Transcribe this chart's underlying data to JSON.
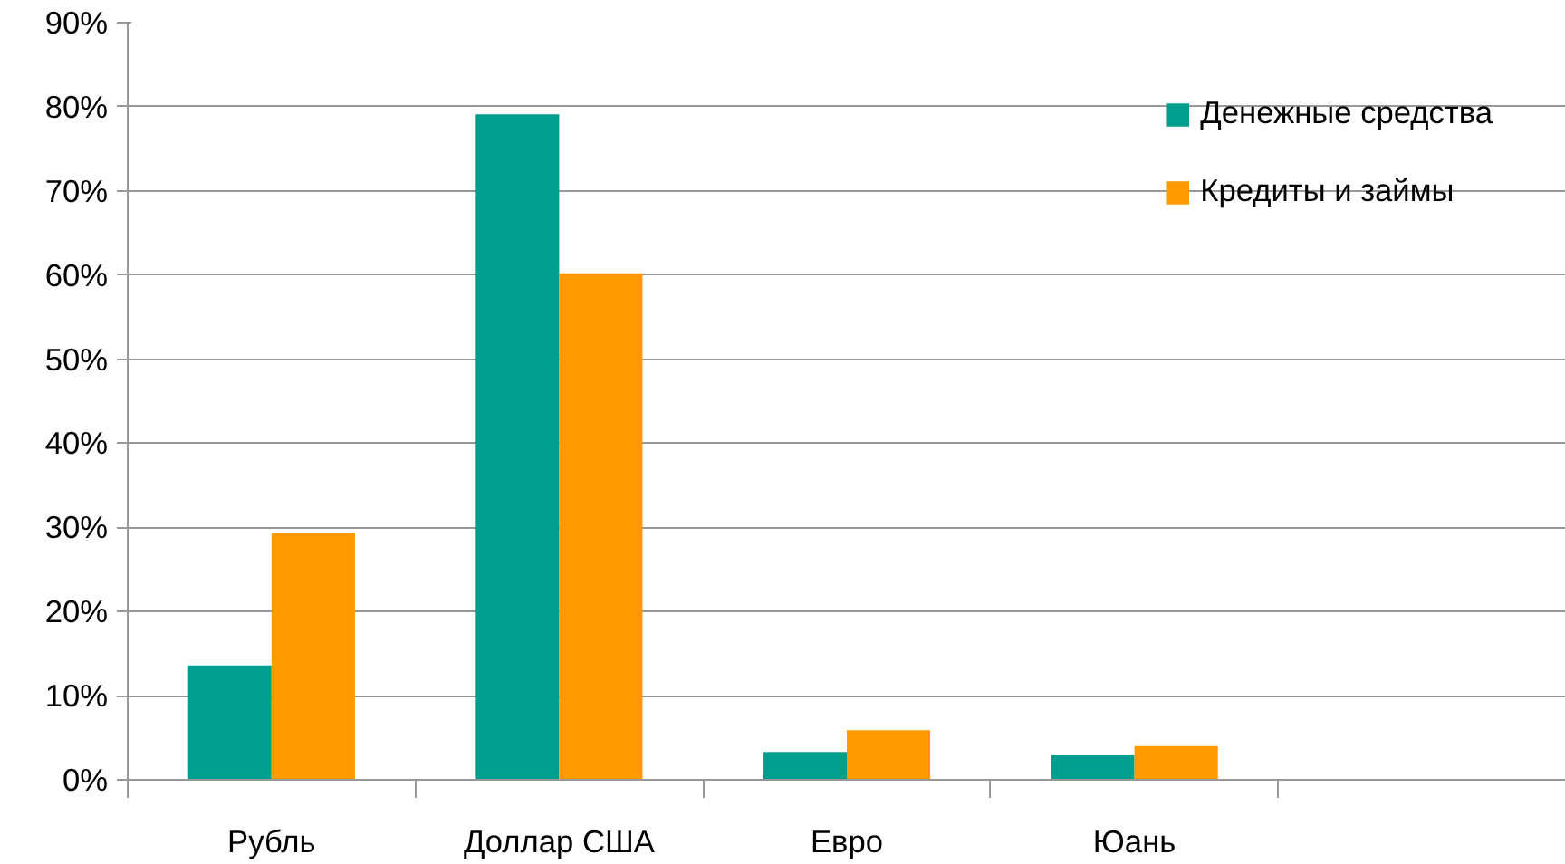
{
  "chart_data": {
    "type": "bar",
    "categories": [
      "Рубль",
      "Доллар США",
      "Евро",
      "Юань",
      null
    ],
    "series": [
      {
        "name": "Денежные средства",
        "color": "#009e8e",
        "values": [
          13.6,
          79.1,
          3.3,
          2.9,
          null
        ]
      },
      {
        "name": "Кредиты и займы",
        "color": "#ff9900",
        "values": [
          29.3,
          60.2,
          5.9,
          4.0,
          null
        ]
      }
    ],
    "ylim": [
      0,
      90
    ],
    "yticks": [
      {
        "value": 0,
        "label": "0%"
      },
      {
        "value": 10,
        "label": "10%"
      },
      {
        "value": 20,
        "label": "20%"
      },
      {
        "value": 30,
        "label": "30%"
      },
      {
        "value": 40,
        "label": "40%"
      },
      {
        "value": 50,
        "label": "50%"
      },
      {
        "value": 60,
        "label": "60%"
      },
      {
        "value": 70,
        "label": "70%"
      },
      {
        "value": 80,
        "label": "80%"
      },
      {
        "value": 90,
        "label": "90%"
      }
    ],
    "grid": "y",
    "legend": "top right"
  }
}
